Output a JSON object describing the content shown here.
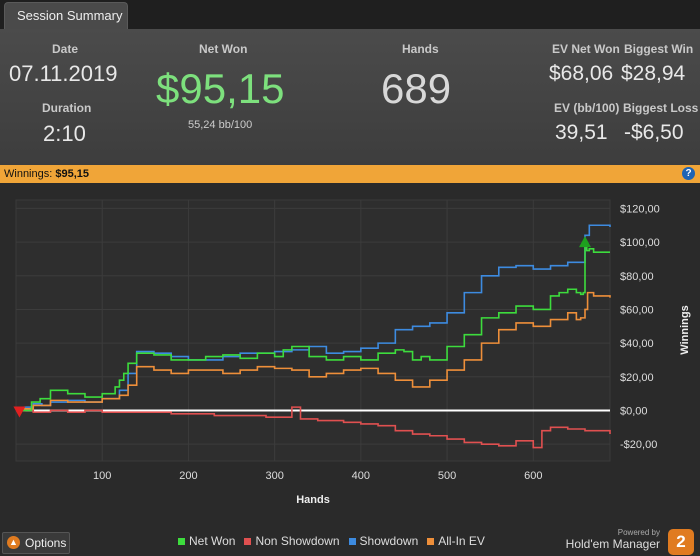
{
  "tab": {
    "label": "Session Summary"
  },
  "summary": {
    "date_label": "Date",
    "date": "07.11.2019",
    "duration_label": "Duration",
    "duration": "2:10",
    "netwon_label": "Net Won",
    "netwon": "$95,15",
    "bb100": "55,24 bb/100",
    "hands_label": "Hands",
    "hands": "689",
    "ev_netwon_label": "EV Net Won",
    "ev_netwon": "$68,06",
    "biggest_win_label": "Biggest Win",
    "biggest_win": "$28,94",
    "ev_bb100_label": "EV (bb/100)",
    "ev_bb100": "39,51",
    "biggest_loss_label": "Biggest Loss",
    "biggest_loss": "-$6,50"
  },
  "winnings_bar": {
    "label": "Winnings:",
    "value": "$95,15",
    "help": "?"
  },
  "chart_data": {
    "type": "line",
    "xlabel": "Hands",
    "ylabel": "Winnings",
    "xlim": [
      0,
      689
    ],
    "ylim": [
      -30,
      125
    ],
    "xticks": [
      100,
      200,
      300,
      400,
      500,
      600
    ],
    "xtick_labels": [
      "100",
      "200",
      "300",
      "400",
      "500",
      "600"
    ],
    "yticks": [
      120,
      100,
      80,
      60,
      40,
      20,
      0,
      -20
    ],
    "ytick_labels": [
      "$120,00",
      "$100,00",
      "$80,00",
      "$60,00",
      "$40,00",
      "$20,00",
      "$0,00",
      "-$20,00"
    ],
    "series": [
      {
        "name": "Net Won",
        "color": "#3ddc3d",
        "x": [
          0,
          8,
          18,
          28,
          40,
          60,
          80,
          100,
          115,
          120,
          125,
          130,
          140,
          145,
          160,
          180,
          200,
          220,
          240,
          260,
          280,
          300,
          310,
          320,
          340,
          360,
          380,
          400,
          420,
          440,
          450,
          460,
          470,
          480,
          500,
          520,
          540,
          560,
          580,
          600,
          620,
          630,
          640,
          650,
          655,
          658,
          660,
          662,
          665,
          670,
          689
        ],
        "y": [
          0,
          0,
          5,
          7,
          12,
          10,
          8,
          10,
          14,
          18,
          22,
          28,
          34,
          34,
          33,
          30,
          30,
          32,
          33,
          31,
          34,
          32,
          36,
          38,
          32,
          30,
          32,
          30,
          34,
          36,
          35,
          30,
          32,
          30,
          38,
          45,
          55,
          58,
          62,
          60,
          68,
          70,
          72,
          70,
          69,
          70,
          100,
          95,
          96,
          94,
          94
        ]
      },
      {
        "name": "Non Showdown",
        "color": "#e05050",
        "x": [
          0,
          20,
          40,
          60,
          80,
          100,
          120,
          150,
          180,
          200,
          230,
          260,
          290,
          310,
          320,
          330,
          350,
          380,
          400,
          420,
          440,
          460,
          480,
          500,
          520,
          540,
          560,
          580,
          600,
          610,
          620,
          640,
          660,
          689
        ],
        "y": [
          0,
          -1,
          0,
          -1,
          0,
          -1,
          -1,
          -1,
          -2,
          -2,
          -3,
          -3,
          -4,
          -4,
          2,
          -5,
          -6,
          -7,
          -8,
          -9,
          -12,
          -14,
          -15,
          -17,
          -19,
          -20,
          -21,
          -18,
          -22,
          -12,
          -10,
          -11,
          -12,
          -14
        ]
      },
      {
        "name": "Showdown",
        "color": "#3d8be0",
        "x": [
          0,
          10,
          20,
          30,
          40,
          60,
          80,
          100,
          120,
          130,
          140,
          160,
          180,
          200,
          220,
          240,
          260,
          280,
          300,
          320,
          340,
          360,
          380,
          400,
          420,
          440,
          460,
          480,
          500,
          520,
          540,
          560,
          580,
          600,
          620,
          640,
          660,
          665,
          689
        ],
        "y": [
          0,
          2,
          4,
          3,
          5,
          6,
          5,
          7,
          12,
          22,
          35,
          34,
          32,
          30,
          30,
          32,
          34,
          34,
          35,
          36,
          38,
          34,
          35,
          37,
          40,
          48,
          50,
          52,
          58,
          70,
          80,
          85,
          86,
          84,
          86,
          88,
          104,
          110,
          109
        ]
      },
      {
        "name": "All-In EV",
        "color": "#ee8f3a",
        "x": [
          0,
          10,
          20,
          40,
          60,
          80,
          100,
          120,
          130,
          140,
          160,
          180,
          200,
          220,
          240,
          260,
          280,
          300,
          320,
          340,
          360,
          380,
          400,
          420,
          440,
          460,
          480,
          500,
          520,
          540,
          560,
          580,
          600,
          620,
          640,
          650,
          655,
          660,
          663,
          670,
          689
        ],
        "y": [
          0,
          1,
          3,
          6,
          5,
          5,
          7,
          9,
          15,
          26,
          24,
          22,
          24,
          24,
          22,
          24,
          26,
          25,
          24,
          20,
          22,
          24,
          25,
          22,
          18,
          14,
          18,
          24,
          30,
          40,
          48,
          52,
          50,
          54,
          58,
          54,
          55,
          60,
          70,
          68,
          67
        ]
      }
    ],
    "zero_line_color": "#ffffff",
    "markers": [
      {
        "name": "low-marker",
        "shape": "triangle-down",
        "color": "#e02020",
        "x": 4,
        "y": 0
      },
      {
        "name": "high-marker",
        "shape": "triangle-up",
        "color": "#1ea01e",
        "x": 660,
        "y": 100
      }
    ]
  },
  "footer": {
    "options_label": "Options",
    "legend": [
      {
        "label": "Net Won",
        "color": "#3ddc3d"
      },
      {
        "label": "Non Showdown",
        "color": "#e05050"
      },
      {
        "label": "Showdown",
        "color": "#3d8be0"
      },
      {
        "label": "All-In EV",
        "color": "#ee8f3a"
      }
    ],
    "powered_by": "Powered by",
    "brand": "Hold'em Manager",
    "brand_badge": "2"
  }
}
